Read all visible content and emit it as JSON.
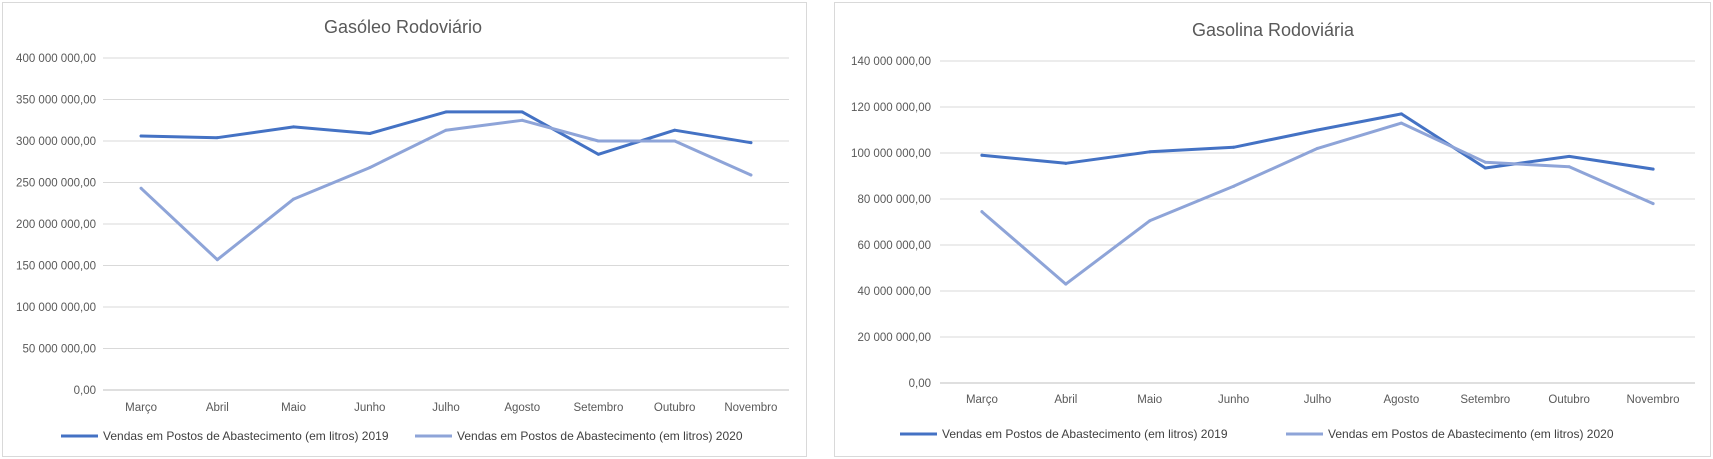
{
  "chart_data": [
    {
      "type": "line",
      "title": "Gasóleo Rodoviário",
      "categories": [
        "Março",
        "Abril",
        "Maio",
        "Junho",
        "Julho",
        "Agosto",
        "Setembro",
        "Outubro",
        "Novembro"
      ],
      "ylim": [
        0,
        400000000
      ],
      "yticks": [
        0,
        50000000,
        100000000,
        150000000,
        200000000,
        250000000,
        300000000,
        350000000,
        400000000
      ],
      "ytick_labels": [
        "0,00",
        "50 000 000,00",
        "100 000 000,00",
        "150 000 000,00",
        "200 000 000,00",
        "250 000 000,00",
        "300 000 000,00",
        "350 000 000,00",
        "400 000 000,00"
      ],
      "grid": true,
      "legend_position": "bottom",
      "series": [
        {
          "name": "Vendas em Postos de Abastecimento  (em litros) 2019",
          "color": "#4472c4",
          "values": [
            306000000,
            304000000,
            317000000,
            309000000,
            335000000,
            335000000,
            284000000,
            313000000,
            298000000
          ]
        },
        {
          "name": "Vendas em Postos de Abastecimento  (em litros) 2020",
          "color": "#8ea4d8",
          "values": [
            243000000,
            157000000,
            230000000,
            268000000,
            313000000,
            325000000,
            300000000,
            300000000,
            259000000
          ]
        }
      ]
    },
    {
      "type": "line",
      "title": "Gasolina Rodoviária",
      "categories": [
        "Março",
        "Abril",
        "Maio",
        "Junho",
        "Julho",
        "Agosto",
        "Setembro",
        "Outubro",
        "Novembro"
      ],
      "ylim": [
        0,
        140000000
      ],
      "yticks": [
        0,
        20000000,
        40000000,
        60000000,
        80000000,
        100000000,
        120000000,
        140000000
      ],
      "ytick_labels": [
        "0,00",
        "20 000 000,00",
        "40 000 000,00",
        "60 000 000,00",
        "80 000 000,00",
        "100 000 000,00",
        "120 000 000,00",
        "140 000 000,00"
      ],
      "grid": true,
      "legend_position": "bottom",
      "series": [
        {
          "name": "Vendas em Postos de Abastecimento  (em litros) 2019",
          "color": "#4472c4",
          "values": [
            99000000,
            95500000,
            100500000,
            102500000,
            110000000,
            117000000,
            93500000,
            98500000,
            93000000
          ]
        },
        {
          "name": "Vendas em Postos de Abastecimento  (em litros) 2020",
          "color": "#8ea4d8",
          "values": [
            74500000,
            43000000,
            70500000,
            85500000,
            102000000,
            113000000,
            96000000,
            94000000,
            78000000
          ]
        }
      ]
    }
  ]
}
